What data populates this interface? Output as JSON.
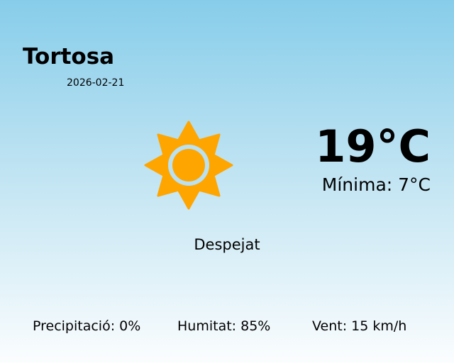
{
  "location": {
    "city": "Tortosa",
    "date": "2026-02-21"
  },
  "current": {
    "temperature": "19°C",
    "minimum": "Mínima: 7°C",
    "condition": "Despejat",
    "icon": "sun-icon",
    "icon_color": "#ffa500"
  },
  "stats": {
    "precipitation": "Precipitació: 0%",
    "humidity": "Humitat: 85%",
    "wind": "Vent: 15 km/h"
  }
}
